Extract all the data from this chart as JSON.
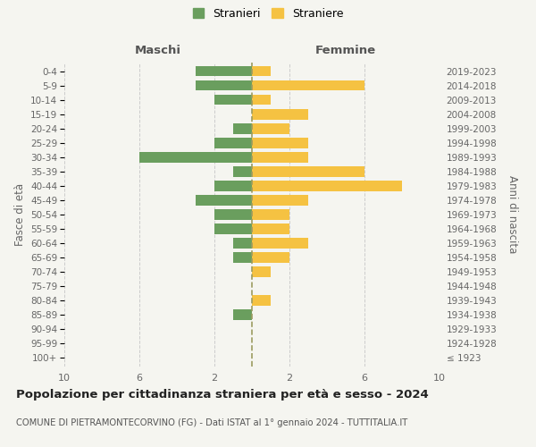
{
  "age_groups": [
    "100+",
    "95-99",
    "90-94",
    "85-89",
    "80-84",
    "75-79",
    "70-74",
    "65-69",
    "60-64",
    "55-59",
    "50-54",
    "45-49",
    "40-44",
    "35-39",
    "30-34",
    "25-29",
    "20-24",
    "15-19",
    "10-14",
    "5-9",
    "0-4"
  ],
  "birth_years": [
    "≤ 1923",
    "1924-1928",
    "1929-1933",
    "1934-1938",
    "1939-1943",
    "1944-1948",
    "1949-1953",
    "1954-1958",
    "1959-1963",
    "1964-1968",
    "1969-1973",
    "1974-1978",
    "1979-1983",
    "1984-1988",
    "1989-1993",
    "1994-1998",
    "1999-2003",
    "2004-2008",
    "2009-2013",
    "2014-2018",
    "2019-2023"
  ],
  "maschi": [
    0,
    0,
    0,
    1,
    0,
    0,
    0,
    1,
    1,
    2,
    2,
    3,
    2,
    1,
    6,
    2,
    1,
    0,
    2,
    3,
    3
  ],
  "femmine": [
    0,
    0,
    0,
    0,
    1,
    0,
    1,
    2,
    3,
    2,
    2,
    3,
    8,
    6,
    3,
    3,
    2,
    3,
    1,
    6,
    1
  ],
  "maschi_color": "#6a9e5e",
  "femmine_color": "#f5c242",
  "center_line_color": "#9b9b60",
  "background_color": "#f5f5f0",
  "grid_color": "#cccccc",
  "title": "Popolazione per cittadinanza straniera per età e sesso - 2024",
  "subtitle": "COMUNE DI PIETRAMONTECORVINO (FG) - Dati ISTAT al 1° gennaio 2024 - TUTTITALIA.IT",
  "ylabel_left": "Fasce di età",
  "ylabel_right": "Anni di nascita",
  "xlabel_maschi": "Maschi",
  "xlabel_femmine": "Femmine",
  "xlim": 10,
  "legend_maschi": "Stranieri",
  "legend_femmine": "Straniere",
  "xtick_positions": [
    -10,
    -6,
    -2,
    2,
    6,
    10
  ],
  "xtick_labels": [
    "10",
    "6",
    "2",
    "2",
    "6",
    "10"
  ]
}
